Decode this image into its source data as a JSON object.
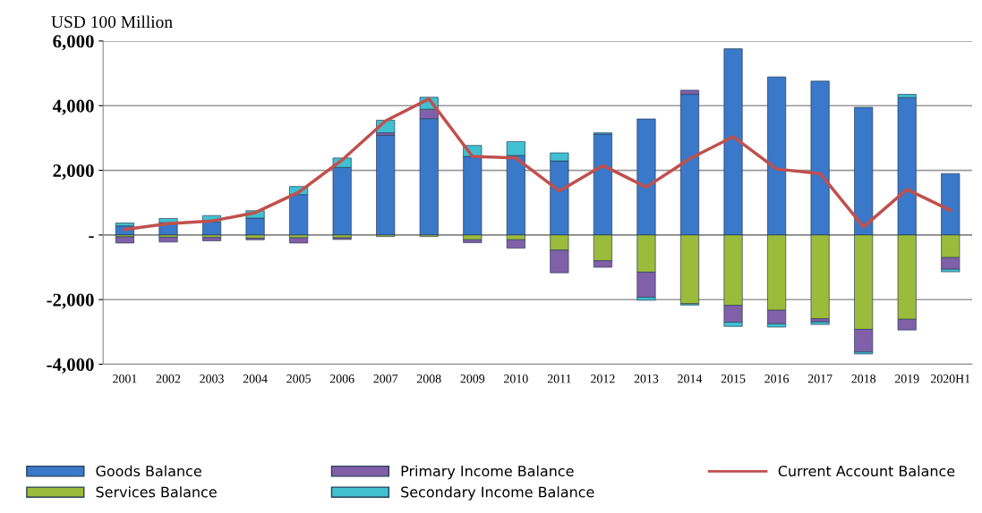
{
  "chart_data": {
    "type": "bar",
    "stacked": true,
    "ylabel": "USD 100 Million",
    "categories": [
      "2001",
      "2002",
      "2003",
      "2004",
      "2005",
      "2006",
      "2007",
      "2008",
      "2009",
      "2010",
      "2011",
      "2012",
      "2013",
      "2014",
      "2015",
      "2016",
      "2017",
      "2018",
      "2019",
      "2020H1"
    ],
    "series": [
      {
        "name": "Goods Balance",
        "color": "#3a78c9",
        "values": [
          280,
          380,
          400,
          520,
          1250,
          2090,
          3080,
          3600,
          2430,
          2460,
          2290,
          3120,
          3590,
          4350,
          5760,
          4890,
          4760,
          3950,
          4250,
          1900
        ]
      },
      {
        "name": "Services Balance",
        "color": "#9bbb3a",
        "values": [
          -60,
          -70,
          -80,
          -100,
          -90,
          -90,
          -50,
          -50,
          -150,
          -150,
          -470,
          -800,
          -1150,
          -2130,
          -2180,
          -2330,
          -2590,
          -2920,
          -2610,
          -700
        ]
      },
      {
        "name": "Primary Income Balance",
        "color": "#8060a8",
        "values": [
          -190,
          -150,
          -100,
          -50,
          -160,
          -50,
          80,
          290,
          -90,
          -260,
          -700,
          -200,
          -780,
          130,
          -520,
          -420,
          -100,
          -700,
          -330,
          -360
        ]
      },
      {
        "name": "Secondary Income Balance",
        "color": "#40c0d0",
        "values": [
          90,
          130,
          200,
          230,
          250,
          290,
          390,
          370,
          340,
          430,
          250,
          40,
          -90,
          -40,
          -130,
          -100,
          -80,
          -60,
          100,
          -80
        ]
      },
      {
        "name": "Current Account Balance",
        "type": "line",
        "color": "#c0504d",
        "values": [
          170,
          350,
          430,
          690,
          1320,
          2320,
          3530,
          4210,
          2430,
          2380,
          1360,
          2150,
          1480,
          2360,
          3040,
          2040,
          1900,
          250,
          1410,
          760
        ]
      }
    ],
    "ylim": [
      -4000,
      6000
    ],
    "yticks": [
      {
        "value": -4000,
        "label": "-4,000"
      },
      {
        "value": -2000,
        "label": "-2,000"
      },
      {
        "value": 0,
        "label": "-"
      },
      {
        "value": 2000,
        "label": "2,000"
      },
      {
        "value": 4000,
        "label": "4,000"
      },
      {
        "value": 6000,
        "label": "6,000"
      }
    ],
    "grid": "y",
    "legend": "bottom"
  }
}
